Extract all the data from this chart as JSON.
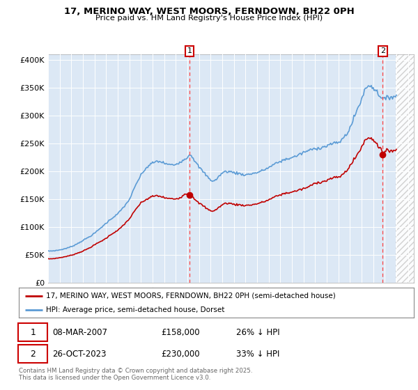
{
  "title_line1": "17, MERINO WAY, WEST MOORS, FERNDOWN, BH22 0PH",
  "title_line2": "Price paid vs. HM Land Registry's House Price Index (HPI)",
  "background_color": "#ffffff",
  "plot_bg_color": "#dce8f5",
  "hpi_color": "#5b9bd5",
  "price_color": "#c00000",
  "vline_color": "#ff4444",
  "purchase1_date": 2007.17,
  "purchase1_price": 158000,
  "purchase2_date": 2023.82,
  "purchase2_price": 230000,
  "legend_label_price": "17, MERINO WAY, WEST MOORS, FERNDOWN, BH22 0PH (semi-detached house)",
  "legend_label_hpi": "HPI: Average price, semi-detached house, Dorset",
  "annotation1_label": "1",
  "annotation1_text": "08-MAR-2007",
  "annotation1_price": "£158,000",
  "annotation1_hpi": "26% ↓ HPI",
  "annotation2_label": "2",
  "annotation2_text": "26-OCT-2023",
  "annotation2_price": "£230,000",
  "annotation2_hpi": "33% ↓ HPI",
  "footer": "Contains HM Land Registry data © Crown copyright and database right 2025.\nThis data is licensed under the Open Government Licence v3.0.",
  "xlim_left": 1995.0,
  "xlim_right": 2026.5,
  "ylim": [
    0,
    410000
  ],
  "yticks": [
    0,
    50000,
    100000,
    150000,
    200000,
    250000,
    300000,
    350000,
    400000
  ],
  "ytick_labels": [
    "£0",
    "£50K",
    "£100K",
    "£150K",
    "£200K",
    "£250K",
    "£300K",
    "£350K",
    "£400K"
  ],
  "hatch_start": 2024.92,
  "hatch_end": 2026.5,
  "future_line_end": 2025.0
}
